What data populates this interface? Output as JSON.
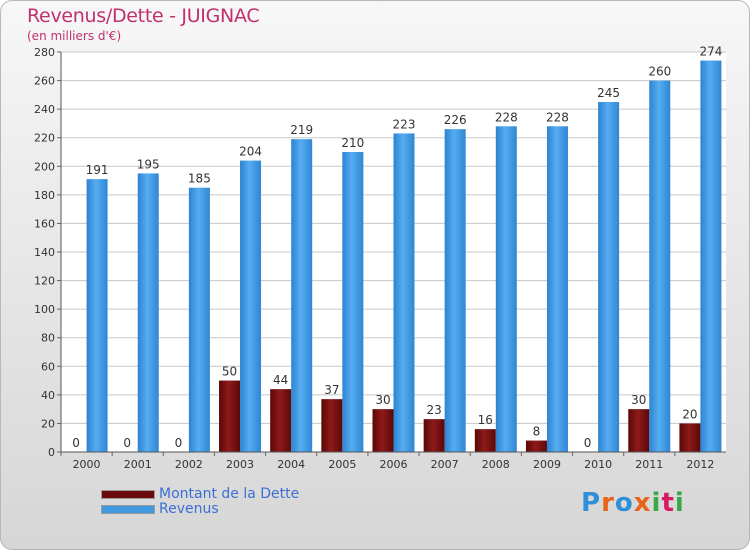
{
  "header": {
    "title": "Revenus/Dette - JUIGNAC",
    "subtitle": "(en milliers d'€)"
  },
  "logo": {
    "letters": [
      {
        "ch": "P",
        "color": "#2f8fd8"
      },
      {
        "ch": "r",
        "color": "#e8641b"
      },
      {
        "ch": "o",
        "color": "#2f8fd8"
      },
      {
        "ch": "x",
        "color": "#e8641b"
      },
      {
        "ch": "i",
        "color": "#3aa84a"
      },
      {
        "ch": "t",
        "color": "#d81b60"
      },
      {
        "ch": "i",
        "color": "#3aa84a"
      }
    ]
  },
  "chart_data": {
    "type": "bar",
    "title": "Revenus/Dette - JUIGNAC",
    "subtitle": "(en milliers d'€)",
    "categories": [
      "2000",
      "2001",
      "2002",
      "2003",
      "2004",
      "2005",
      "2006",
      "2007",
      "2008",
      "2009",
      "2010",
      "2011",
      "2012"
    ],
    "series": [
      {
        "name": "Montant de la Dette",
        "color": "#6b0a0a",
        "values": [
          0,
          0,
          0,
          50,
          44,
          37,
          30,
          23,
          16,
          8,
          0,
          30,
          20
        ]
      },
      {
        "name": "Revenus",
        "color": "#3f9ae0",
        "values": [
          191,
          195,
          185,
          204,
          219,
          210,
          223,
          226,
          228,
          228,
          245,
          260,
          274
        ]
      }
    ],
    "ylim": [
      0,
      280
    ],
    "yticks": [
      0,
      20,
      40,
      60,
      80,
      100,
      120,
      140,
      160,
      180,
      200,
      220,
      240,
      260,
      280
    ],
    "grid": true,
    "legend_position": "bottom-left"
  }
}
